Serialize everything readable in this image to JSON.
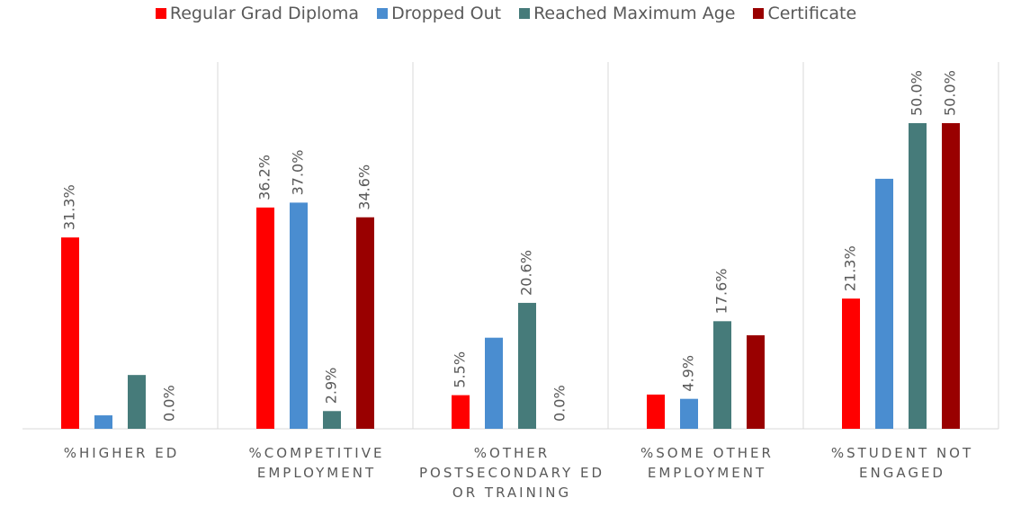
{
  "chart_data": {
    "type": "bar",
    "categories": [
      "%HIGHER ED",
      "%COMPETITIVE EMPLOYMENT",
      "%OTHER POSTSECONDARY ED OR TRAINING",
      "%SOME OTHER EMPLOYMENT",
      "%STUDENT NOT ENGAGED"
    ],
    "series": [
      {
        "name": "Regular Grad Diploma",
        "color": "#ff0000",
        "values": [
          31.3,
          36.2,
          5.5,
          5.6,
          21.3
        ],
        "value_labels": [
          "31.3%",
          "36.2%",
          "5.5%",
          null,
          "21.3%"
        ]
      },
      {
        "name": "Dropped Out",
        "color": "#4a8dd0",
        "values": [
          2.2,
          37.0,
          14.9,
          4.9,
          40.9
        ],
        "value_labels": [
          null,
          "37.0%",
          null,
          "4.9%",
          null
        ]
      },
      {
        "name": "Reached Maximum Age",
        "color": "#467b7a",
        "values": [
          8.8,
          2.9,
          20.6,
          17.6,
          50.0
        ],
        "value_labels": [
          null,
          "2.9%",
          "20.6%",
          "17.6%",
          "50.0%"
        ]
      },
      {
        "name": "Certificate",
        "color": "#990000",
        "values": [
          0.0,
          34.6,
          0.0,
          15.3,
          50.0
        ],
        "value_labels": [
          "0.0%",
          "34.6%",
          "0.0%",
          null,
          "50.0%"
        ]
      }
    ],
    "ylim": [
      0,
      60
    ],
    "legend": "top"
  }
}
